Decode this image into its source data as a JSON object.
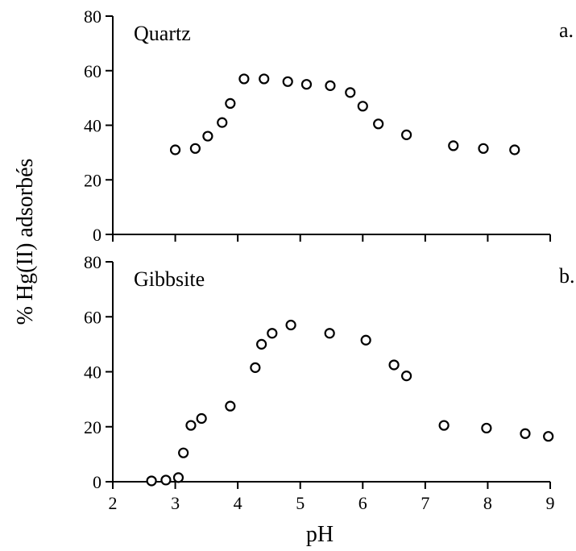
{
  "chart_data": {
    "type": "scatter",
    "xlabel": "pH",
    "ylabel": "% Hg(II) adsorbés",
    "xlim": [
      2,
      9
    ],
    "xticks": [
      "2",
      "3",
      "4",
      "5",
      "6",
      "7",
      "8",
      "9"
    ],
    "grid": false,
    "panels": [
      {
        "label": "Quartz",
        "corner": "a.",
        "ylim": [
          0,
          80
        ],
        "yticks": [
          "0",
          "20",
          "40",
          "60",
          "80"
        ],
        "x": [
          3.0,
          3.32,
          3.52,
          3.75,
          3.88,
          4.1,
          4.42,
          4.8,
          5.1,
          5.48,
          5.8,
          6.0,
          6.25,
          6.7,
          7.45,
          7.93,
          8.43
        ],
        "y": [
          31,
          31.5,
          36,
          41,
          48,
          57,
          57,
          56,
          55,
          54.5,
          52,
          47,
          40.5,
          36.5,
          32.5,
          31.5,
          31
        ]
      },
      {
        "label": "Gibbsite",
        "corner": "b.",
        "ylim": [
          0,
          80
        ],
        "yticks": [
          "0",
          "20",
          "40",
          "60",
          "80"
        ],
        "x": [
          2.62,
          2.85,
          3.05,
          3.13,
          3.25,
          3.42,
          3.88,
          4.28,
          4.38,
          4.55,
          4.85,
          5.47,
          6.05,
          6.5,
          6.7,
          7.3,
          7.98,
          8.6,
          8.97
        ],
        "y": [
          0.3,
          0.6,
          1.5,
          10.5,
          20.5,
          23,
          27.5,
          41.5,
          50,
          54,
          57,
          54,
          51.5,
          42.5,
          38.5,
          20.5,
          19.5,
          17.5,
          16.5
        ]
      }
    ]
  }
}
